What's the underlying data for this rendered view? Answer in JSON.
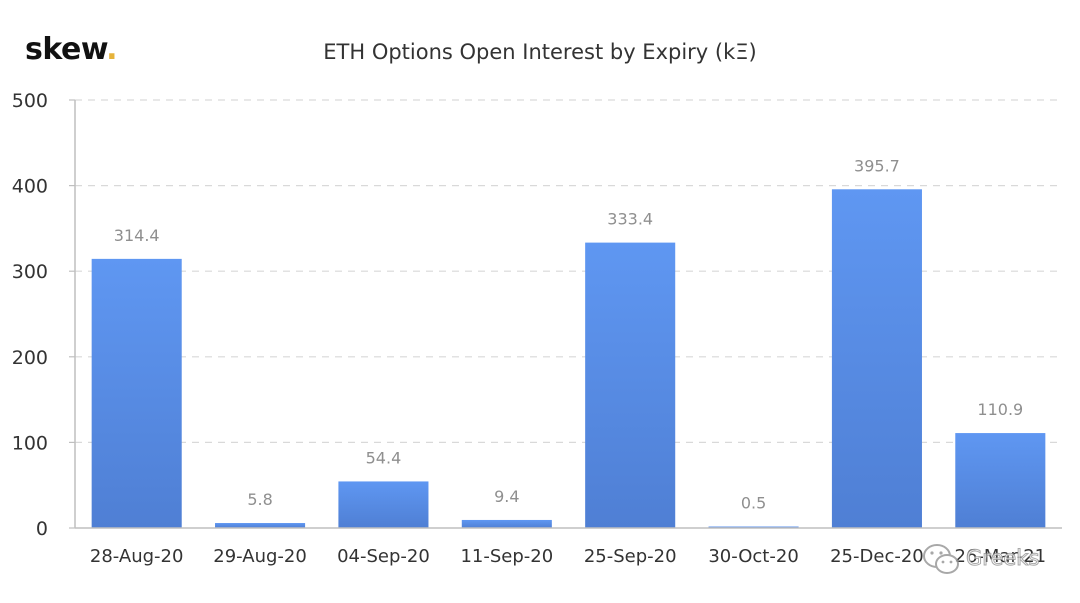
{
  "brand": {
    "name": "skew",
    "dot": ".",
    "dot_color": "#e6b33a"
  },
  "watermark": {
    "text": "Greeks",
    "icon": "wechat-icon"
  },
  "chart_data": {
    "type": "bar",
    "title": "ETH Options Open Interest by Expiry (kΞ)",
    "xlabel": "",
    "ylabel": "",
    "categories": [
      "28-Aug-20",
      "29-Aug-20",
      "04-Sep-20",
      "11-Sep-20",
      "25-Sep-20",
      "30-Oct-20",
      "25-Dec-20",
      "26-Mar-21"
    ],
    "values": [
      314.4,
      5.8,
      54.4,
      9.4,
      333.4,
      0.5,
      395.7,
      110.9
    ],
    "data_labels": [
      "314.4",
      "5.8",
      "54.4",
      "9.4",
      "333.4",
      "0.5",
      "395.7",
      "110.9"
    ],
    "ylim": [
      0,
      500
    ],
    "yticks": [
      0,
      100,
      200,
      300,
      400,
      500
    ],
    "grid": true,
    "legend": "none",
    "colors": {
      "bar_top": "#5f97f2",
      "bar_bottom": "#4f7fd4",
      "grid": "#d9d9d9",
      "axis": "#bfbfbf",
      "data_label": "#8f8f8f"
    }
  }
}
